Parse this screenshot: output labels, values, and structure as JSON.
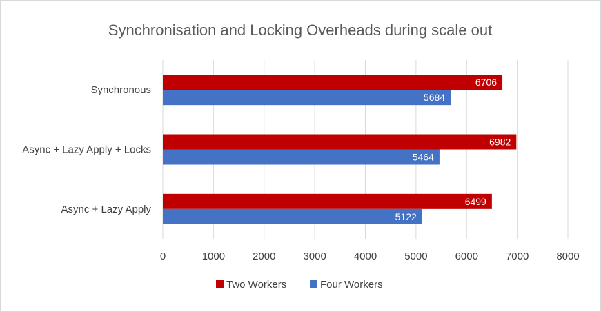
{
  "chart_data": {
    "type": "bar",
    "orientation": "horizontal",
    "title": "Synchronisation and Locking Overheads during scale out",
    "categories": [
      "Synchronous",
      "Async + Lazy Apply + Locks",
      "Async + Lazy Apply"
    ],
    "series": [
      {
        "name": "Two Workers",
        "color": "#c00000",
        "values": [
          6706,
          6982,
          6499
        ]
      },
      {
        "name": "Four Workers",
        "color": "#4472c4",
        "values": [
          5684,
          5464,
          5122
        ]
      }
    ],
    "xlim": [
      0,
      8000
    ],
    "xticks": [
      0,
      1000,
      2000,
      3000,
      4000,
      5000,
      6000,
      7000,
      8000
    ],
    "xlabel": "",
    "ylabel": "",
    "grid": true,
    "legend_position": "bottom",
    "data_labels": true
  }
}
